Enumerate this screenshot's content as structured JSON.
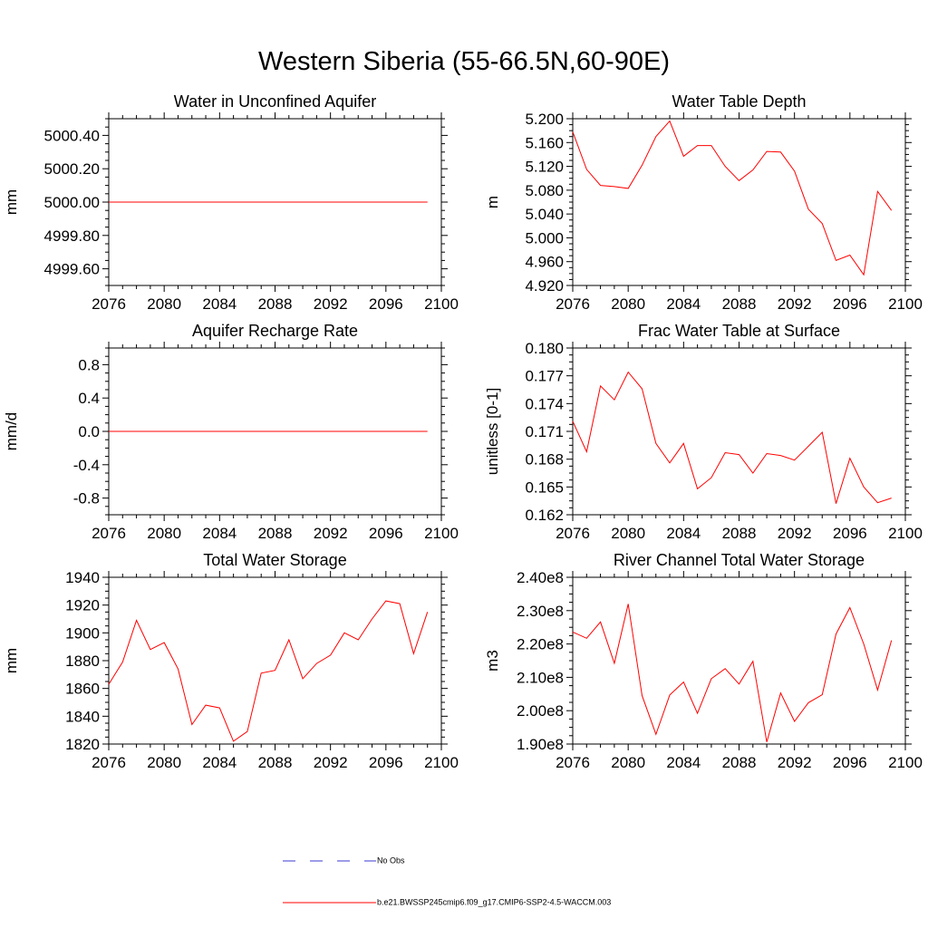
{
  "figure": {
    "title": "Western Siberia (55-66.5N,60-90E)",
    "legend": [
      {
        "label": "No Obs",
        "color": "#3a3ad0",
        "style": "dashed"
      },
      {
        "label": "b.e21.BWSSP245cmip6.f09_g17.CMIP6-SSP2-4.5-WACCM.003",
        "color": "#ff0000",
        "style": "solid"
      }
    ],
    "line_color": "#ff0000"
  },
  "chart_data": [
    {
      "type": "line",
      "title": "Water in Unconfined Aquifer",
      "xlabel": "",
      "ylabel": "mm",
      "xlim": [
        2076,
        2100
      ],
      "ylim": [
        4999.5,
        5000.5
      ],
      "xticks": [
        "2076",
        "2080",
        "2084",
        "2088",
        "2092",
        "2096",
        "2100"
      ],
      "yticks": [
        "4999.60",
        "4999.80",
        "5000.00",
        "5000.20",
        "5000.40"
      ],
      "x": [
        2076,
        2077,
        2078,
        2079,
        2080,
        2081,
        2082,
        2083,
        2084,
        2085,
        2086,
        2087,
        2088,
        2089,
        2090,
        2091,
        2092,
        2093,
        2094,
        2095,
        2096,
        2097,
        2098,
        2099
      ],
      "values": [
        5000,
        5000,
        5000,
        5000,
        5000,
        5000,
        5000,
        5000,
        5000,
        5000,
        5000,
        5000,
        5000,
        5000,
        5000,
        5000,
        5000,
        5000,
        5000,
        5000,
        5000,
        5000,
        5000,
        5000
      ]
    },
    {
      "type": "line",
      "title": "Water Table Depth",
      "xlabel": "",
      "ylabel": "m",
      "xlim": [
        2076,
        2100
      ],
      "ylim": [
        4.92,
        5.2
      ],
      "xticks": [
        "2076",
        "2080",
        "2084",
        "2088",
        "2092",
        "2096",
        "2100"
      ],
      "yticks": [
        "4.920",
        "4.960",
        "5.000",
        "5.040",
        "5.080",
        "5.120",
        "5.160",
        "5.200"
      ],
      "x": [
        2076,
        2077,
        2078,
        2079,
        2080,
        2081,
        2082,
        2083,
        2084,
        2085,
        2086,
        2087,
        2088,
        2089,
        2090,
        2091,
        2092,
        2093,
        2094,
        2095,
        2096,
        2097,
        2098,
        2099
      ],
      "values": [
        5.178,
        5.115,
        5.088,
        5.086,
        5.083,
        5.122,
        5.17,
        5.196,
        5.137,
        5.155,
        5.155,
        5.12,
        5.096,
        5.114,
        5.145,
        5.144,
        5.112,
        5.048,
        5.024,
        4.962,
        4.971,
        4.938,
        5.078,
        5.046
      ]
    },
    {
      "type": "line",
      "title": "Aquifer Recharge Rate",
      "xlabel": "",
      "ylabel": "mm/d",
      "xlim": [
        2076,
        2100
      ],
      "ylim": [
        -1,
        1
      ],
      "xticks": [
        "2076",
        "2080",
        "2084",
        "2088",
        "2092",
        "2096",
        "2100"
      ],
      "yticks": [
        "-0.8",
        "-0.4",
        "0.0",
        "0.4",
        "0.8"
      ],
      "x": [
        2076,
        2077,
        2078,
        2079,
        2080,
        2081,
        2082,
        2083,
        2084,
        2085,
        2086,
        2087,
        2088,
        2089,
        2090,
        2091,
        2092,
        2093,
        2094,
        2095,
        2096,
        2097,
        2098,
        2099
      ],
      "values": [
        0,
        0,
        0,
        0,
        0,
        0,
        0,
        0,
        0,
        0,
        0,
        0,
        0,
        0,
        0,
        0,
        0,
        0,
        0,
        0,
        0,
        0,
        0,
        0
      ]
    },
    {
      "type": "line",
      "title": "Frac Water Table at Surface",
      "xlabel": "",
      "ylabel": "unitless [0-1]",
      "xlim": [
        2076,
        2100
      ],
      "ylim": [
        0.162,
        0.18
      ],
      "xticks": [
        "2076",
        "2080",
        "2084",
        "2088",
        "2092",
        "2096",
        "2100"
      ],
      "yticks": [
        "0.162",
        "0.165",
        "0.168",
        "0.171",
        "0.174",
        "0.177",
        "0.180"
      ],
      "x": [
        2076,
        2077,
        2078,
        2079,
        2080,
        2081,
        2082,
        2083,
        2084,
        2085,
        2086,
        2087,
        2088,
        2089,
        2090,
        2091,
        2092,
        2093,
        2094,
        2095,
        2096,
        2097,
        2098,
        2099
      ],
      "values": [
        0.1721,
        0.1688,
        0.1759,
        0.1744,
        0.1774,
        0.1756,
        0.1697,
        0.1676,
        0.1697,
        0.1648,
        0.166,
        0.1687,
        0.1685,
        0.1665,
        0.1686,
        0.1684,
        0.1679,
        0.1694,
        0.1709,
        0.1632,
        0.1681,
        0.165,
        0.1633,
        0.1638
      ]
    },
    {
      "type": "line",
      "title": "Total Water Storage",
      "xlabel": "",
      "ylabel": "mm",
      "xlim": [
        2076,
        2100
      ],
      "ylim": [
        1820,
        1940
      ],
      "xticks": [
        "2076",
        "2080",
        "2084",
        "2088",
        "2092",
        "2096",
        "2100"
      ],
      "yticks": [
        "1820",
        "1840",
        "1860",
        "1880",
        "1900",
        "1920",
        "1940"
      ],
      "x": [
        2076,
        2077,
        2078,
        2079,
        2080,
        2081,
        2082,
        2083,
        2084,
        2085,
        2086,
        2087,
        2088,
        2089,
        2090,
        2091,
        2092,
        2093,
        2094,
        2095,
        2096,
        2097,
        2098,
        2099
      ],
      "values": [
        1863,
        1879,
        1909,
        1888,
        1893,
        1874,
        1834,
        1848,
        1846,
        1822,
        1829,
        1871,
        1873,
        1895,
        1867,
        1878,
        1884,
        1900,
        1895,
        1910,
        1923,
        1921,
        1885,
        1915
      ]
    },
    {
      "type": "line",
      "title": "River Channel Total Water Storage",
      "xlabel": "",
      "ylabel": "m3",
      "xlim": [
        2076,
        2100
      ],
      "ylim": [
        190000000.0,
        240000000.0
      ],
      "xticks": [
        "2076",
        "2080",
        "2084",
        "2088",
        "2092",
        "2096",
        "2100"
      ],
      "yticks": [
        "1.90e8",
        "2.00e8",
        "2.10e8",
        "2.20e8",
        "2.30e8",
        "2.40e8"
      ],
      "x": [
        2076,
        2077,
        2078,
        2079,
        2080,
        2081,
        2082,
        2083,
        2084,
        2085,
        2086,
        2087,
        2088,
        2089,
        2090,
        2091,
        2092,
        2093,
        2094,
        2095,
        2096,
        2097,
        2098,
        2099
      ],
      "values": [
        223600000.0,
        221700000.0,
        226600000.0,
        214200000.0,
        232000000.0,
        204500000.0,
        192900000.0,
        204700000.0,
        208600000.0,
        199200000.0,
        209600000.0,
        212600000.0,
        208000000.0,
        214800000.0,
        190600000.0,
        205300000.0,
        196800000.0,
        202400000.0,
        204800000.0,
        223000000.0,
        230900000.0,
        220000000.0,
        206200000.0,
        221100000.0
      ]
    }
  ]
}
